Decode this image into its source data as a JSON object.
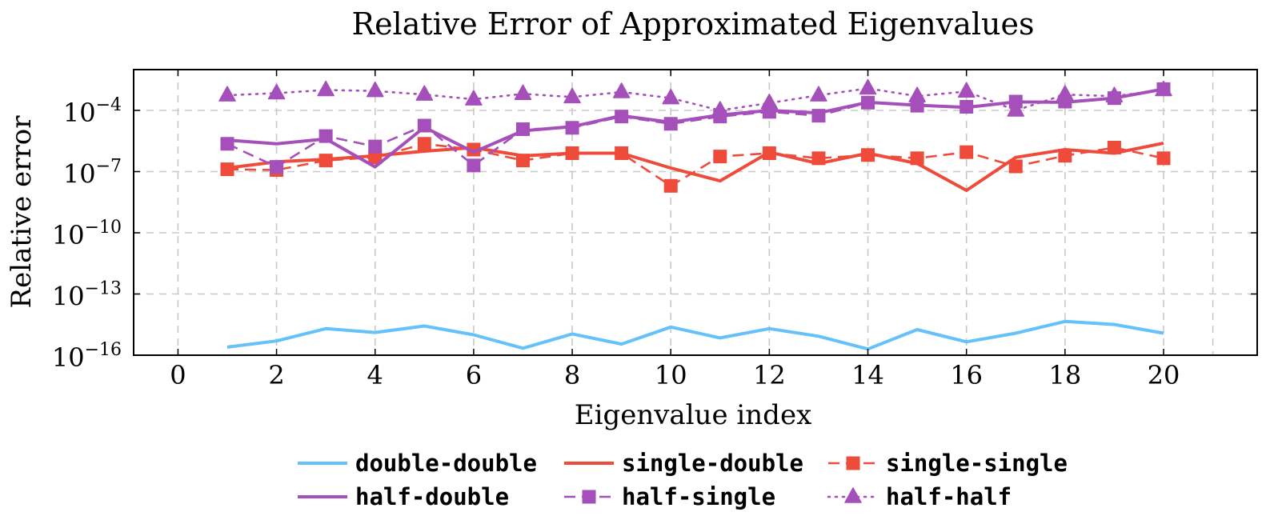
{
  "chart_data": {
    "type": "line",
    "title": "Relative Error of Approximated Eigenvalues",
    "xlabel": "Eigenvalue index",
    "ylabel": "Relative error",
    "xlim": [
      -0.9,
      21.9
    ],
    "ylim": [
      1e-16,
      0.01
    ],
    "yscale": "log",
    "xticks": [
      0,
      2,
      4,
      6,
      8,
      10,
      12,
      14,
      16,
      18,
      20
    ],
    "yticks": [
      {
        "value": 1e-16,
        "base": "10",
        "exp": "−16"
      },
      {
        "value": 1e-13,
        "base": "10",
        "exp": "−13"
      },
      {
        "value": 1e-10,
        "base": "10",
        "exp": "−10"
      },
      {
        "value": 1e-07,
        "base": "10",
        "exp": "−7"
      },
      {
        "value": 0.0001,
        "base": "10",
        "exp": "−4"
      }
    ],
    "grid": true,
    "legend_position": "bottom",
    "x": [
      1,
      2,
      3,
      4,
      5,
      6,
      7,
      8,
      9,
      10,
      11,
      12,
      13,
      14,
      15,
      16,
      17,
      18,
      19,
      20
    ],
    "series": [
      {
        "name": "double-double",
        "color": "#64c1fa",
        "dash": "solid",
        "marker": "none",
        "values": [
          2.5e-16,
          5e-16,
          2e-15,
          1.3e-15,
          2.7e-15,
          1e-15,
          2.2e-16,
          1.1e-15,
          3.5e-16,
          2.4e-15,
          7e-16,
          2e-15,
          8.5e-16,
          2e-16,
          1.8e-15,
          4.5e-16,
          1.2e-15,
          4.5e-15,
          3.2e-15,
          1.2e-15
        ]
      },
      {
        "name": "single-double",
        "color": "#ee4b3b",
        "dash": "solid",
        "marker": "none",
        "values": [
          1.5e-07,
          3e-07,
          4e-07,
          6e-07,
          1e-06,
          1.5e-06,
          6e-07,
          8e-07,
          8e-07,
          1.5e-07,
          3.5e-08,
          9e-07,
          2.5e-07,
          8e-07,
          2.5e-07,
          1.2e-08,
          5e-07,
          1.2e-06,
          8e-07,
          2.5e-06
        ]
      },
      {
        "name": "single-single",
        "color": "#ee4b3b",
        "dash": "dashed",
        "marker": "square",
        "values": [
          1.3e-07,
          1.2e-07,
          3.5e-07,
          5e-07,
          2.3e-06,
          1.2e-06,
          3.5e-07,
          8e-07,
          8e-07,
          2e-08,
          5.5e-07,
          8e-07,
          4.5e-07,
          6.5e-07,
          4.5e-07,
          9e-07,
          1.8e-07,
          6e-07,
          1.5e-06,
          4.5e-07
        ]
      },
      {
        "name": "half-double",
        "color": "#a550ba",
        "dash": "solid",
        "marker": "none",
        "values": [
          3.5e-06,
          2.3e-06,
          4e-06,
          1.7e-07,
          1.5e-05,
          9e-07,
          1e-05,
          1.6e-05,
          5.5e-05,
          2.6e-05,
          6e-05,
          0.0001,
          7.5e-05,
          0.00025,
          0.00018,
          0.00014,
          0.00026,
          0.00025,
          0.0004,
          0.0011
        ]
      },
      {
        "name": "half-single",
        "color": "#a550ba",
        "dash": "dashed",
        "marker": "square",
        "values": [
          2.3e-06,
          1.7e-07,
          5.5e-06,
          1.7e-06,
          1.8e-05,
          2e-07,
          1.2e-05,
          1.4e-05,
          5e-05,
          2.2e-05,
          5e-05,
          8.5e-05,
          5.5e-05,
          0.00024,
          0.00017,
          0.00015,
          0.00027,
          0.00027,
          0.0004,
          0.0011
        ]
      },
      {
        "name": "half-half",
        "color": "#a550ba",
        "dash": "dotted",
        "marker": "triangle",
        "values": [
          0.00055,
          0.0007,
          0.001,
          0.0009,
          0.0006,
          0.00035,
          0.00065,
          0.00045,
          0.0008,
          0.0004,
          0.0001,
          0.00023,
          0.00055,
          0.0012,
          0.0005,
          0.00085,
          0.0001,
          0.0006,
          0.0005,
          0.001
        ]
      }
    ]
  }
}
